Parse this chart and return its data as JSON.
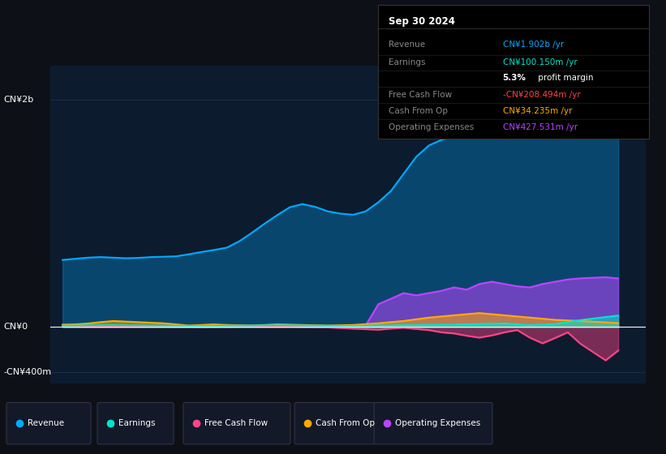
{
  "bg_color": "#0d1117",
  "chart_bg": "#0d1b2e",
  "legend_bg": "#131929",
  "ylim": [
    -500,
    2300
  ],
  "y_zero": 0,
  "ytick_positions": [
    -400,
    0,
    2000
  ],
  "ytick_labels": [
    "-CN¥400m",
    "CN¥0",
    "CN¥2b"
  ],
  "xlim": [
    2013.5,
    2025.3
  ],
  "xticks": [
    2014,
    2015,
    2016,
    2017,
    2018,
    2019,
    2020,
    2021,
    2022,
    2023,
    2024
  ],
  "revenue_color": "#00aaff",
  "earnings_color": "#00e5cc",
  "fcf_color": "#ff4488",
  "cashfromop_color": "#ffaa00",
  "opex_color": "#bb44ff",
  "grid_color": "#1e3050",
  "revenue": {
    "years": [
      2013.75,
      2014.0,
      2014.25,
      2014.5,
      2014.75,
      2015.0,
      2015.25,
      2015.5,
      2015.75,
      2016.0,
      2016.25,
      2016.5,
      2016.75,
      2017.0,
      2017.25,
      2017.5,
      2017.75,
      2018.0,
      2018.25,
      2018.5,
      2018.75,
      2019.0,
      2019.25,
      2019.5,
      2019.75,
      2020.0,
      2020.25,
      2020.5,
      2020.75,
      2021.0,
      2021.25,
      2021.5,
      2021.75,
      2022.0,
      2022.25,
      2022.5,
      2022.75,
      2023.0,
      2023.25,
      2023.5,
      2023.75,
      2024.0,
      2024.25,
      2024.5,
      2024.75
    ],
    "values": [
      590,
      600,
      610,
      615,
      610,
      605,
      608,
      615,
      618,
      622,
      640,
      660,
      678,
      698,
      755,
      830,
      910,
      985,
      1055,
      1082,
      1058,
      1018,
      998,
      988,
      1018,
      1098,
      1198,
      1348,
      1498,
      1598,
      1648,
      1678,
      1698,
      1798,
      1952,
      2055,
      2002,
      1802,
      1752,
      1722,
      1702,
      1752,
      1802,
      1870,
      1902
    ]
  },
  "earnings": {
    "years": [
      2013.75,
      2014.0,
      2014.5,
      2015.0,
      2015.5,
      2016.0,
      2016.5,
      2017.0,
      2017.5,
      2018.0,
      2018.5,
      2019.0,
      2019.5,
      2020.0,
      2020.5,
      2021.0,
      2021.5,
      2022.0,
      2022.5,
      2023.0,
      2023.25,
      2023.5,
      2024.0,
      2024.75
    ],
    "values": [
      10,
      12,
      15,
      14,
      12,
      10,
      8,
      10,
      12,
      15,
      12,
      10,
      8,
      12,
      15,
      18,
      20,
      25,
      30,
      15,
      20,
      25,
      60,
      100
    ]
  },
  "fcf": {
    "years": [
      2013.75,
      2014.0,
      2014.5,
      2015.0,
      2015.5,
      2016.0,
      2016.5,
      2017.0,
      2017.5,
      2018.0,
      2018.5,
      2019.0,
      2019.5,
      2019.75,
      2020.0,
      2020.25,
      2020.5,
      2020.75,
      2021.0,
      2021.25,
      2021.5,
      2021.75,
      2022.0,
      2022.25,
      2022.5,
      2022.75,
      2023.0,
      2023.25,
      2023.5,
      2023.75,
      2024.0,
      2024.5,
      2024.75
    ],
    "values": [
      5,
      5,
      5,
      5,
      5,
      0,
      -2,
      0,
      5,
      5,
      0,
      -5,
      -15,
      -20,
      -25,
      -15,
      -8,
      -18,
      -28,
      -48,
      -58,
      -78,
      -95,
      -75,
      -48,
      -28,
      -95,
      -145,
      -98,
      -48,
      -148,
      -295,
      -208
    ]
  },
  "cashfromop": {
    "years": [
      2013.75,
      2014.0,
      2014.25,
      2014.5,
      2014.75,
      2015.0,
      2015.25,
      2015.5,
      2015.75,
      2016.0,
      2016.25,
      2016.5,
      2016.75,
      2017.0,
      2017.5,
      2018.0,
      2018.5,
      2019.0,
      2019.5,
      2020.0,
      2020.5,
      2021.0,
      2021.5,
      2022.0,
      2022.5,
      2023.0,
      2023.5,
      2024.0,
      2024.75
    ],
    "values": [
      20,
      22,
      30,
      42,
      52,
      47,
      42,
      37,
      32,
      22,
      12,
      17,
      22,
      17,
      12,
      22,
      17,
      12,
      17,
      32,
      52,
      82,
      102,
      122,
      102,
      82,
      62,
      52,
      34
    ]
  },
  "opex": {
    "years": [
      2013.75,
      2014.0,
      2014.5,
      2015.0,
      2015.5,
      2016.0,
      2016.5,
      2017.0,
      2017.5,
      2018.0,
      2018.5,
      2019.0,
      2019.5,
      2019.75,
      2020.0,
      2020.25,
      2020.5,
      2020.75,
      2021.0,
      2021.25,
      2021.5,
      2021.75,
      2022.0,
      2022.25,
      2022.5,
      2022.75,
      2023.0,
      2023.25,
      2023.5,
      2023.75,
      2024.0,
      2024.5,
      2024.75
    ],
    "values": [
      5,
      5,
      5,
      5,
      5,
      5,
      5,
      5,
      5,
      5,
      5,
      5,
      8,
      12,
      200,
      248,
      298,
      278,
      298,
      318,
      348,
      328,
      378,
      398,
      378,
      358,
      348,
      378,
      398,
      418,
      428,
      438,
      427
    ]
  },
  "infobox": {
    "date": "Sep 30 2024",
    "rows": [
      {
        "label": "Revenue",
        "value": "CN¥1.902b /yr",
        "value_color": "#00aaff"
      },
      {
        "label": "Earnings",
        "value": "CN¥100.150m /yr",
        "value_color": "#00e5cc"
      },
      {
        "label": "",
        "value": "5.3%",
        "value_color": "#ffffff",
        "suffix": " profit margin",
        "suffix_color": "#ffffff",
        "bold": true
      },
      {
        "label": "Free Cash Flow",
        "value": "-CN¥208.494m /yr",
        "value_color": "#ff4444"
      },
      {
        "label": "Cash From Op",
        "value": "CN¥34.235m /yr",
        "value_color": "#ffaa00"
      },
      {
        "label": "Operating Expenses",
        "value": "CN¥427.531m /yr",
        "value_color": "#bb44ff"
      }
    ]
  },
  "legend_items": [
    {
      "label": "Revenue",
      "color": "#00aaff"
    },
    {
      "label": "Earnings",
      "color": "#00e5cc"
    },
    {
      "label": "Free Cash Flow",
      "color": "#ff4488"
    },
    {
      "label": "Cash From Op",
      "color": "#ffaa00"
    },
    {
      "label": "Operating Expenses",
      "color": "#bb44ff"
    }
  ]
}
